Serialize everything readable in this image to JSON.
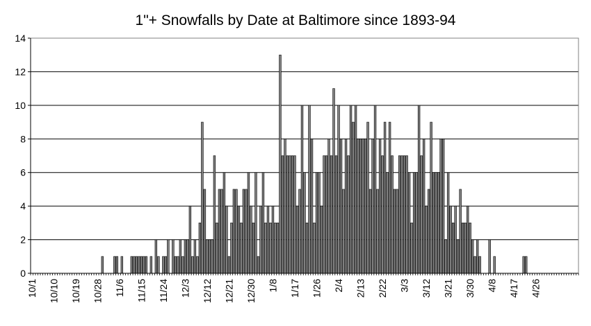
{
  "chart_data": {
    "type": "bar",
    "title": "1\"+ Snowfalls by Date at Baltimore since 1893-94",
    "xlabel": "",
    "ylabel": "",
    "ylim": [
      0,
      14
    ],
    "yticks": [
      0,
      2,
      4,
      6,
      8,
      10,
      12,
      14
    ],
    "grid": true,
    "legend": "none",
    "bar_color": "#808080",
    "start_date": "10/1",
    "xtick_labels": [
      "10/1",
      "10/10",
      "10/19",
      "10/28",
      "11/6",
      "11/15",
      "11/24",
      "12/3",
      "12/12",
      "12/21",
      "12/30",
      "1/8",
      "1/17",
      "1/26",
      "2/4",
      "2/13",
      "2/22",
      "3/3",
      "3/12",
      "3/21",
      "3/30",
      "4/8",
      "4/17",
      "4/26"
    ],
    "xtick_interval_days": 9,
    "values": [
      0,
      0,
      0,
      0,
      0,
      0,
      0,
      0,
      0,
      0,
      0,
      0,
      0,
      0,
      0,
      0,
      0,
      0,
      0,
      0,
      0,
      0,
      0,
      0,
      0,
      0,
      0,
      0,
      0,
      1,
      0,
      0,
      0,
      0,
      1,
      1,
      0,
      1,
      0,
      0,
      0,
      1,
      1,
      1,
      1,
      1,
      1,
      1,
      0,
      1,
      0,
      2,
      1,
      0,
      1,
      1,
      2,
      0,
      2,
      1,
      1,
      2,
      1,
      2,
      2,
      4,
      1,
      2,
      1,
      3,
      9,
      5,
      2,
      2,
      2,
      7,
      3,
      5,
      5,
      6,
      4,
      1,
      3,
      5,
      5,
      4,
      3,
      5,
      5,
      6,
      4,
      3,
      6,
      1,
      4,
      6,
      3,
      4,
      3,
      4,
      3,
      3,
      13,
      7,
      8,
      7,
      7,
      7,
      7,
      4,
      5,
      10,
      6,
      3,
      10,
      8,
      3,
      6,
      6,
      4,
      7,
      7,
      8,
      7,
      11,
      7,
      10,
      8,
      5,
      8,
      7,
      10,
      9,
      10,
      8,
      8,
      8,
      8,
      9,
      5,
      8,
      10,
      5,
      8,
      7,
      9,
      6,
      9,
      7,
      5,
      5,
      7,
      7,
      7,
      7,
      6,
      3,
      6,
      6,
      10,
      7,
      8,
      4,
      5,
      9,
      6,
      6,
      6,
      8,
      8,
      2,
      6,
      4,
      3,
      4,
      2,
      5,
      3,
      3,
      4,
      3,
      2,
      1,
      2,
      1,
      0,
      0,
      0,
      2,
      0,
      1,
      0,
      0,
      0,
      0,
      0,
      0,
      0,
      0,
      0,
      0,
      0,
      1,
      1,
      0,
      0,
      0,
      0,
      0,
      0,
      0,
      0,
      0,
      0,
      0,
      0,
      0,
      0,
      0,
      0,
      0,
      0,
      0,
      0,
      0
    ]
  }
}
